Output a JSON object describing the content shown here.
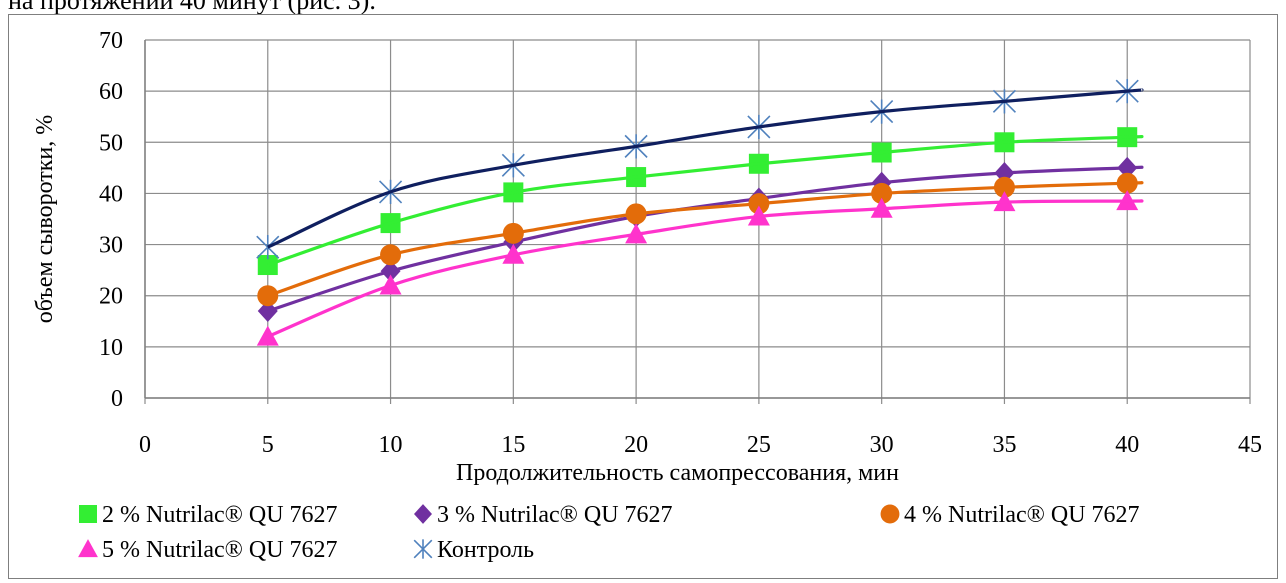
{
  "caption_fragment": "на протяжении 40 минут (рис. 3).",
  "chart_data": {
    "type": "line",
    "xlabel": "Продолжительность самопрессования, мин",
    "ylabel": "объем сыворотки, %",
    "xlim": [
      0,
      45
    ],
    "ylim": [
      0,
      70
    ],
    "x_ticks": [
      "0",
      "5",
      "10",
      "15",
      "20",
      "25",
      "30",
      "35",
      "40",
      "45"
    ],
    "y_ticks": [
      "0",
      "10",
      "20",
      "30",
      "40",
      "50",
      "60",
      "70"
    ],
    "grid": true,
    "legend_position": "bottom",
    "x": [
      5,
      10,
      15,
      20,
      25,
      30,
      35,
      40
    ],
    "series": [
      {
        "name": "2 % Nutrilac® QU 7627",
        "color": "#33ee33",
        "line_color": "#33ee33",
        "marker": "square",
        "values": [
          26,
          34.2,
          40.2,
          43.2,
          45.8,
          48,
          50,
          51
        ]
      },
      {
        "name": "3 % Nutrilac® QU 7627",
        "color": "#7030a0",
        "line_color": "#7030a0",
        "marker": "diamond",
        "values": [
          17,
          24.8,
          30.5,
          35.5,
          39,
          42.1,
          44,
          45
        ]
      },
      {
        "name": "4 % Nutrilac® QU 7627",
        "color": "#e36c0a",
        "line_color": "#e36c0a",
        "marker": "circle",
        "values": [
          20,
          28,
          32.2,
          36,
          38,
          40,
          41.2,
          42
        ]
      },
      {
        "name": "5 % Nutrilac® QU 7627",
        "color": "#ff33cc",
        "line_color": "#ff33cc",
        "marker": "triangle",
        "values": [
          12,
          22,
          28,
          32,
          35.5,
          37,
          38.3,
          38.5
        ]
      },
      {
        "name": "Контроль",
        "color": "#4f81bd",
        "line_color": "#0f1f5f",
        "marker": "star",
        "values": [
          29.5,
          40.3,
          45.5,
          49.2,
          53,
          56,
          58,
          60
        ]
      }
    ]
  }
}
